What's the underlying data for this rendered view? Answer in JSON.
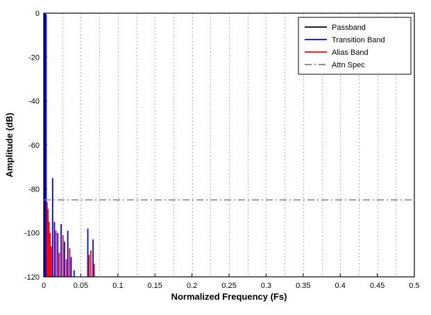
{
  "chart_data": {
    "type": "stem",
    "title": "",
    "xlabel": "Normalized Frequency (Fs)",
    "ylabel": "Amplitude (dB)",
    "xlim": [
      0,
      0.5
    ],
    "ylim": [
      -120,
      0
    ],
    "xticks": [
      0,
      0.05,
      0.1,
      0.15,
      0.2,
      0.25,
      0.3,
      0.35,
      0.4,
      0.45,
      0.5
    ],
    "xtick_labels": [
      "0",
      "0.05",
      "0.1",
      "0.15",
      "0.2",
      "0.25",
      "0.3",
      "0.35",
      "0.4",
      "0.45",
      "0.5"
    ],
    "yticks": [
      0,
      -20,
      -40,
      -60,
      -80,
      -100,
      -120
    ],
    "ytick_labels": [
      "0",
      "-20",
      "-40",
      "-60",
      "-80",
      "-100",
      "-120"
    ],
    "grid": {
      "x_spacing": 0.025,
      "color": "#b3b3b3",
      "style": "dashed",
      "horizontal": false
    },
    "axis_color": "#000000",
    "background": "#ffffff",
    "series": [
      {
        "name": "Passband",
        "color": "#000000",
        "kind": "stem",
        "line_style": "solid",
        "points": [
          [
            0.0008,
            0
          ]
        ]
      },
      {
        "name": "Transition Band",
        "color": "#0000ff",
        "kind": "stem",
        "line_style": "solid",
        "points": [
          [
            0.002,
            0
          ],
          [
            0.0032,
            -0.5
          ],
          [
            0.012,
            -75
          ],
          [
            0.0145,
            -95
          ],
          [
            0.019,
            -100
          ],
          [
            0.0235,
            -96
          ],
          [
            0.028,
            -104
          ],
          [
            0.0325,
            -99
          ],
          [
            0.037,
            -111
          ],
          [
            0.041,
            -117
          ],
          [
            0.0595,
            -98
          ],
          [
            0.0665,
            -103
          ]
        ]
      },
      {
        "name": "Alias Band",
        "color": "#ff0000",
        "kind": "stem",
        "line_style": "solid",
        "points": [
          [
            0.0045,
            -86
          ],
          [
            0.0058,
            -89
          ],
          [
            0.0072,
            -95
          ],
          [
            0.0086,
            -100
          ],
          [
            0.0102,
            -106
          ],
          [
            0.0165,
            -99
          ],
          [
            0.021,
            -109
          ],
          [
            0.026,
            -101
          ],
          [
            0.0305,
            -112
          ],
          [
            0.035,
            -107
          ],
          [
            0.061,
            -110
          ],
          [
            0.0635,
            -108
          ],
          [
            0.068,
            -114
          ]
        ]
      },
      {
        "name": "Attn Spec",
        "color": "#7f7f7f",
        "kind": "hline",
        "line_style": "dashdot",
        "y": -85
      }
    ],
    "legend": {
      "position": "top-right",
      "entries": [
        "Passband",
        "Transition Band",
        "Alias Band",
        "Attn Spec"
      ]
    }
  }
}
